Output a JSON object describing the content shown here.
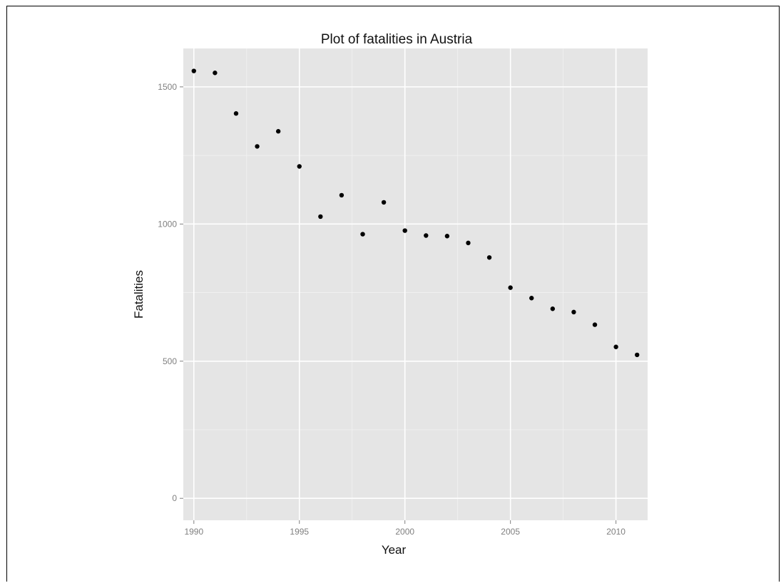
{
  "chart_data": {
    "type": "scatter",
    "title": "Plot of fatalities in Austria",
    "xlabel": "Year",
    "ylabel": "Fatalities",
    "xlim": [
      1989.5,
      2011.5
    ],
    "ylim": [
      -80,
      1640
    ],
    "x_ticks": [
      1990,
      1995,
      2000,
      2005,
      2010
    ],
    "y_ticks": [
      0,
      500,
      1000,
      1500
    ],
    "grid": true,
    "legend": "none",
    "background": "#e5e5e5",
    "grid_color": "#ffffff",
    "point_color": "#000000",
    "x": [
      1990,
      1991,
      1992,
      1993,
      1994,
      1995,
      1996,
      1997,
      1998,
      1999,
      2000,
      2001,
      2002,
      2003,
      2004,
      2005,
      2006,
      2007,
      2008,
      2009,
      2010,
      2011
    ],
    "y": [
      1558,
      1551,
      1403,
      1283,
      1338,
      1210,
      1027,
      1105,
      963,
      1079,
      976,
      958,
      956,
      931,
      878,
      768,
      730,
      691,
      679,
      633,
      552,
      523
    ]
  }
}
